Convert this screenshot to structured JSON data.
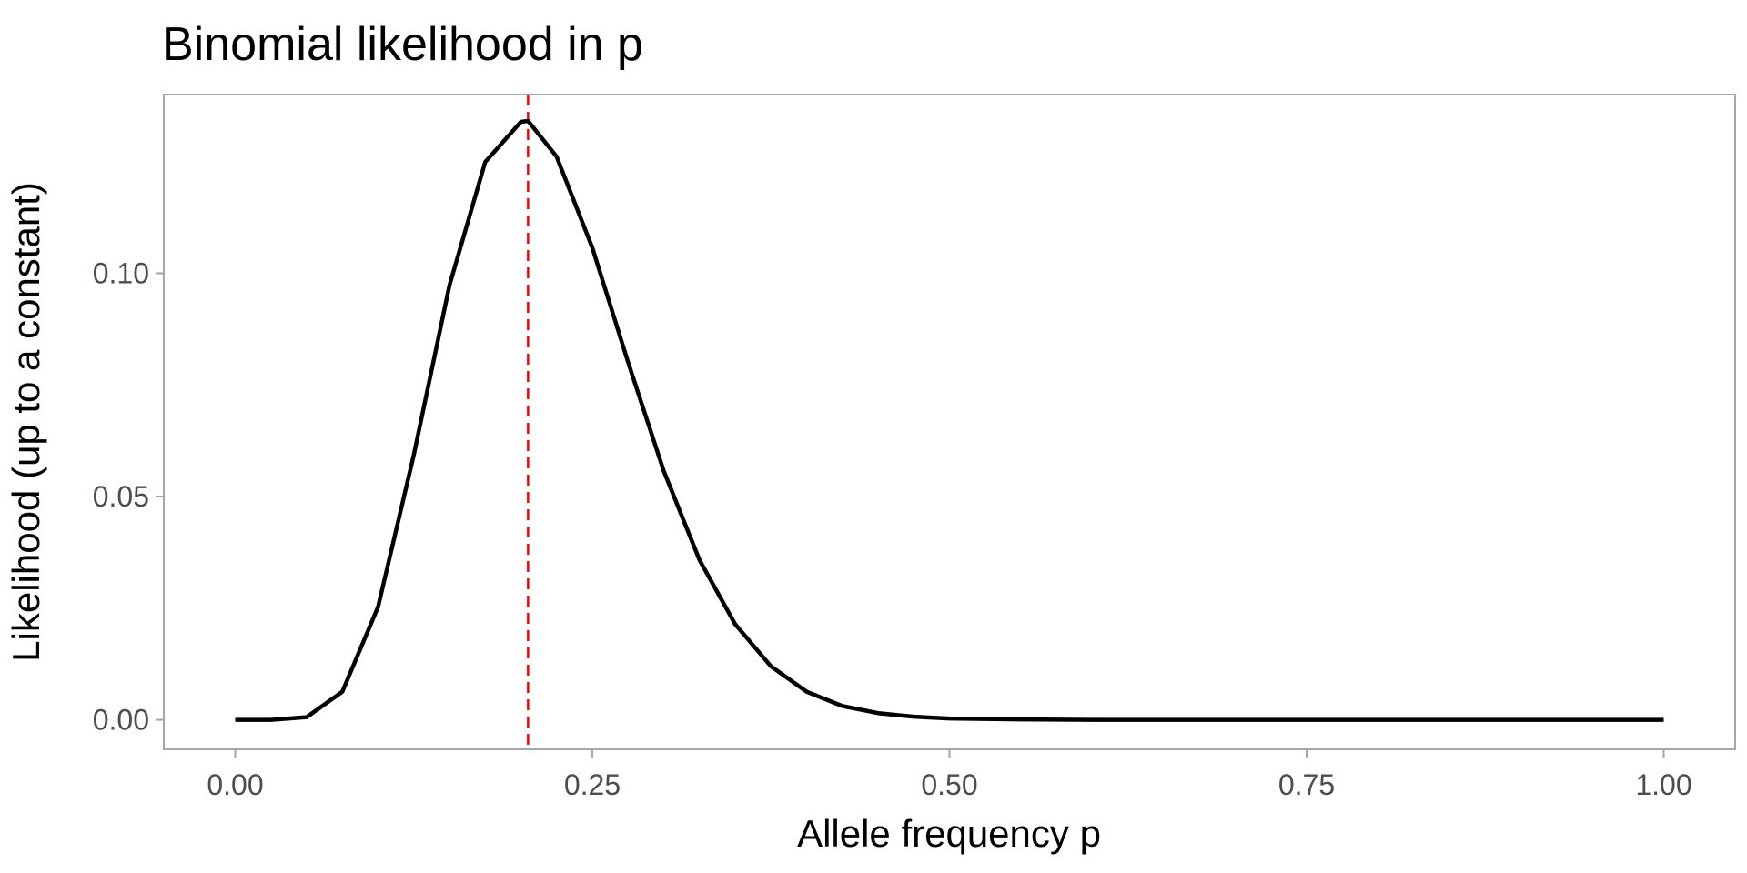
{
  "chart_data": {
    "type": "line",
    "title": "Binomial likelihood in p",
    "xlabel": "Allele frequency p",
    "ylabel": "Likelihood (up to a constant)",
    "xlim": [
      -0.05,
      1.05
    ],
    "ylim": [
      -0.0066,
      0.14
    ],
    "x_ticks": [
      0,
      0.25,
      0.5,
      0.75,
      1
    ],
    "x_tick_labels": [
      "0.00",
      "0.25",
      "0.50",
      "0.75",
      "1.00"
    ],
    "y_ticks": [
      0,
      0.05,
      0.1
    ],
    "y_tick_labels": [
      "0.00",
      "0.05",
      "0.10"
    ],
    "grid": false,
    "series": [
      {
        "color": "#000000",
        "x": [
          0,
          0.025,
          0.05,
          0.075,
          0.1,
          0.125,
          0.15,
          0.175,
          0.2,
          0.205,
          0.225,
          0.25,
          0.275,
          0.3,
          0.325,
          0.35,
          0.375,
          0.4,
          0.425,
          0.45,
          0.475,
          0.5,
          0.55,
          0.6,
          0.65,
          0.7,
          0.75,
          0.8,
          0.85,
          0.9,
          0.95,
          1
        ],
        "y": [
          0,
          0.0,
          0.0006,
          0.0063,
          0.0253,
          0.0593,
          0.0973,
          0.1249,
          0.1339,
          0.1341,
          0.1261,
          0.1057,
          0.0801,
          0.0557,
          0.0358,
          0.0214,
          0.012,
          0.0063,
          0.0031,
          0.0015,
          0.0007,
          0.0003,
          0.0001,
          0.0,
          0.0,
          0.0,
          0.0,
          0.0,
          0.0,
          0.0,
          0.0,
          0
        ]
      }
    ],
    "reference_lines": [
      {
        "axis": "x",
        "value": 0.205,
        "color": "#ff0000",
        "style": "dashed"
      }
    ]
  }
}
